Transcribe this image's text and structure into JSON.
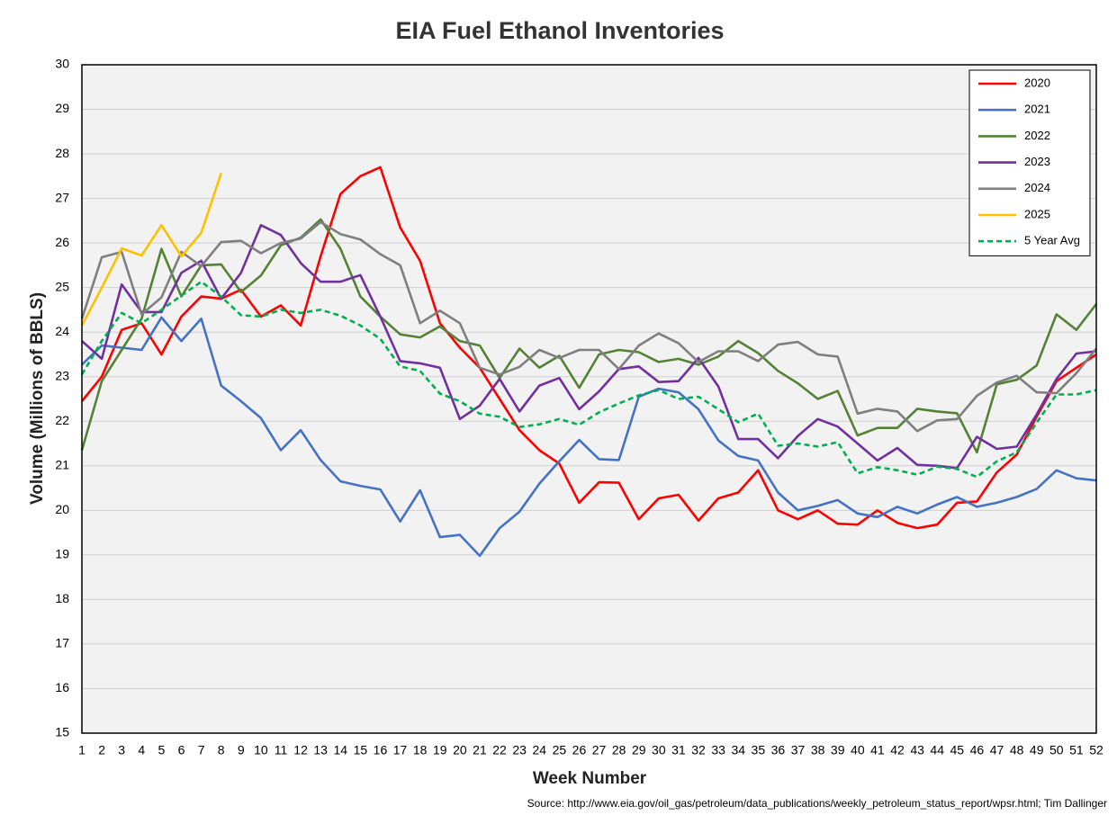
{
  "chart_data": {
    "type": "line",
    "title": "EIA Fuel Ethanol Inventories",
    "x_label": "Week Number",
    "y_label": "Volume (Millions of BBLS)",
    "source": "Source: http://www.eia.gov/oil_gas/petroleum/data_publications/weekly_petroleum_status_report/wpsr.html; Tim Dallinger",
    "categories": [
      1,
      2,
      3,
      4,
      5,
      6,
      7,
      8,
      9,
      10,
      11,
      12,
      13,
      14,
      15,
      16,
      17,
      18,
      19,
      20,
      21,
      22,
      23,
      24,
      25,
      26,
      27,
      28,
      29,
      30,
      31,
      32,
      33,
      34,
      35,
      36,
      37,
      38,
      39,
      40,
      41,
      42,
      43,
      44,
      45,
      46,
      47,
      48,
      49,
      50,
      51,
      52
    ],
    "ylim": [
      15,
      30
    ],
    "yticks": [
      15,
      16,
      17,
      18,
      19,
      20,
      21,
      22,
      23,
      24,
      25,
      26,
      27,
      28,
      29,
      30
    ],
    "grid": true,
    "legend": "top-right",
    "series": [
      {
        "name": "2020",
        "color": "#ff0000",
        "values": [
          22.45,
          23.0,
          24.05,
          24.2,
          23.5,
          24.35,
          24.8,
          24.75,
          24.95,
          24.35,
          24.6,
          24.15,
          25.7,
          27.1,
          27.5,
          27.7,
          26.35,
          25.6,
          24.2,
          23.65,
          23.2,
          22.5,
          21.8,
          21.35,
          21.05,
          20.17,
          20.63,
          20.62,
          19.8,
          20.27,
          20.35,
          19.77,
          20.27,
          20.4,
          20.9,
          20.0,
          19.8,
          20.0,
          19.7,
          19.68,
          20.0,
          19.72,
          19.6,
          19.68,
          20.17,
          20.2,
          20.85,
          21.25,
          22.1,
          22.9,
          23.2,
          23.5
        ]
      },
      {
        "name": "2021",
        "color": "#4472c4",
        "values": [
          23.27,
          23.7,
          23.65,
          23.6,
          24.33,
          23.8,
          24.3,
          22.8,
          22.45,
          22.07,
          21.35,
          21.8,
          21.13,
          20.65,
          20.55,
          20.47,
          19.75,
          20.45,
          19.4,
          19.45,
          18.98,
          19.6,
          19.97,
          20.6,
          21.1,
          21.58,
          21.15,
          21.13,
          22.55,
          22.73,
          22.65,
          22.27,
          21.57,
          21.22,
          21.12,
          20.4,
          20.0,
          20.1,
          20.23,
          19.93,
          19.85,
          20.08,
          19.93,
          20.13,
          20.3,
          20.08,
          20.17,
          20.3,
          20.48,
          20.9,
          20.72,
          20.67
        ]
      },
      {
        "name": "2022",
        "color": "#548235",
        "values": [
          21.35,
          22.9,
          23.6,
          24.3,
          25.87,
          24.8,
          25.5,
          25.52,
          24.9,
          25.27,
          25.95,
          26.12,
          26.53,
          25.87,
          24.8,
          24.35,
          23.95,
          23.88,
          24.13,
          23.8,
          23.7,
          22.97,
          23.63,
          23.2,
          23.47,
          22.75,
          23.5,
          23.6,
          23.55,
          23.33,
          23.4,
          23.27,
          23.45,
          23.8,
          23.53,
          23.13,
          22.85,
          22.5,
          22.68,
          21.68,
          21.85,
          21.85,
          22.28,
          22.22,
          22.18,
          21.3,
          22.83,
          22.93,
          23.25,
          24.4,
          24.05,
          24.63
        ]
      },
      {
        "name": "2023",
        "color": "#7030a0",
        "values": [
          23.8,
          23.4,
          25.07,
          24.45,
          24.45,
          25.33,
          25.6,
          24.75,
          25.33,
          26.4,
          26.18,
          25.55,
          25.13,
          25.13,
          25.28,
          24.35,
          23.35,
          23.3,
          23.2,
          22.05,
          22.35,
          22.95,
          22.22,
          22.8,
          22.97,
          22.27,
          22.67,
          23.17,
          23.23,
          22.88,
          22.9,
          23.42,
          22.78,
          21.6,
          21.6,
          21.17,
          21.67,
          22.05,
          21.88,
          21.5,
          21.12,
          21.4,
          21.02,
          21.0,
          20.95,
          21.65,
          21.38,
          21.43,
          22.15,
          22.95,
          23.52,
          23.57
        ]
      },
      {
        "name": "2024",
        "color": "#7f7f7f",
        "values": [
          24.3,
          25.68,
          25.8,
          24.4,
          24.78,
          25.8,
          25.48,
          26.02,
          26.05,
          25.77,
          26.0,
          26.1,
          26.47,
          26.2,
          26.08,
          25.75,
          25.5,
          24.2,
          24.48,
          24.2,
          23.2,
          23.05,
          23.22,
          23.6,
          23.42,
          23.6,
          23.6,
          23.17,
          23.7,
          23.97,
          23.75,
          23.33,
          23.57,
          23.57,
          23.35,
          23.72,
          23.78,
          23.5,
          23.45,
          22.17,
          22.28,
          22.22,
          21.78,
          22.02,
          22.05,
          22.57,
          22.87,
          23.02,
          22.65,
          22.63,
          23.08,
          23.63
        ]
      },
      {
        "name": "2025",
        "color": "#ffc000",
        "values": [
          24.15,
          25.0,
          25.88,
          25.72,
          26.4,
          25.7,
          26.23,
          27.57,
          null,
          null,
          null,
          null,
          null,
          null,
          null,
          null,
          null,
          null,
          null,
          null,
          null,
          null,
          null,
          null,
          null,
          null,
          null,
          null,
          null,
          null,
          null,
          null,
          null,
          null,
          null,
          null,
          null,
          null,
          null,
          null,
          null,
          null,
          null,
          null,
          null,
          null,
          null,
          null,
          null,
          null,
          null,
          null
        ]
      },
      {
        "name": "5 Year Avg",
        "color": "#00b050",
        "dashed": true,
        "values": [
          23.05,
          23.8,
          24.43,
          24.2,
          24.5,
          24.82,
          25.13,
          24.8,
          24.38,
          24.35,
          24.5,
          24.43,
          24.5,
          24.37,
          24.15,
          23.85,
          23.23,
          23.13,
          22.62,
          22.45,
          22.17,
          22.1,
          21.87,
          21.93,
          22.05,
          21.92,
          22.2,
          22.4,
          22.58,
          22.7,
          22.5,
          22.55,
          22.27,
          21.98,
          22.17,
          21.45,
          21.5,
          21.43,
          21.53,
          20.83,
          20.97,
          20.9,
          20.8,
          20.98,
          20.93,
          20.75,
          21.1,
          21.3,
          21.97,
          22.6,
          22.6,
          22.7
        ]
      }
    ]
  }
}
